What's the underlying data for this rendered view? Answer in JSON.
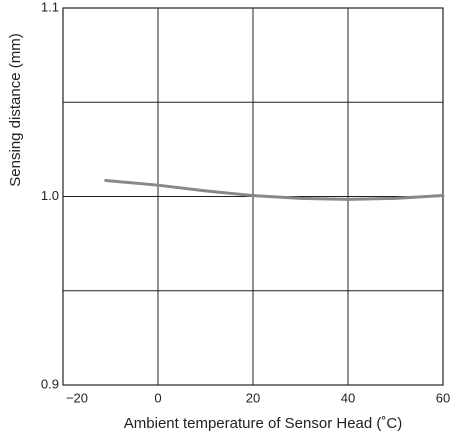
{
  "chart_data": {
    "type": "line",
    "x_label": "Ambient temperature of Sensor Head (˚C)",
    "y_label": "Sensing distance (mm)",
    "series": [
      {
        "color": "#888888",
        "x": [
          -11,
          0,
          10,
          20,
          30,
          40,
          50,
          60
        ],
        "values": [
          1.0085,
          1.006,
          1.003,
          1.0005,
          0.999,
          0.9985,
          0.999,
          1.0005
        ]
      }
    ],
    "xlim": [
      -20,
      60
    ],
    "xticks": [
      {
        "value": -20,
        "label": "−20"
      },
      0,
      20,
      40,
      60
    ],
    "ylim": [
      0.9,
      1.1
    ],
    "yticks": [
      0.9,
      {
        "value": 1,
        "label": "1.0"
      },
      1.1
    ],
    "y_minor_grid": [
      0.95,
      1.05
    ],
    "grid": true
  }
}
